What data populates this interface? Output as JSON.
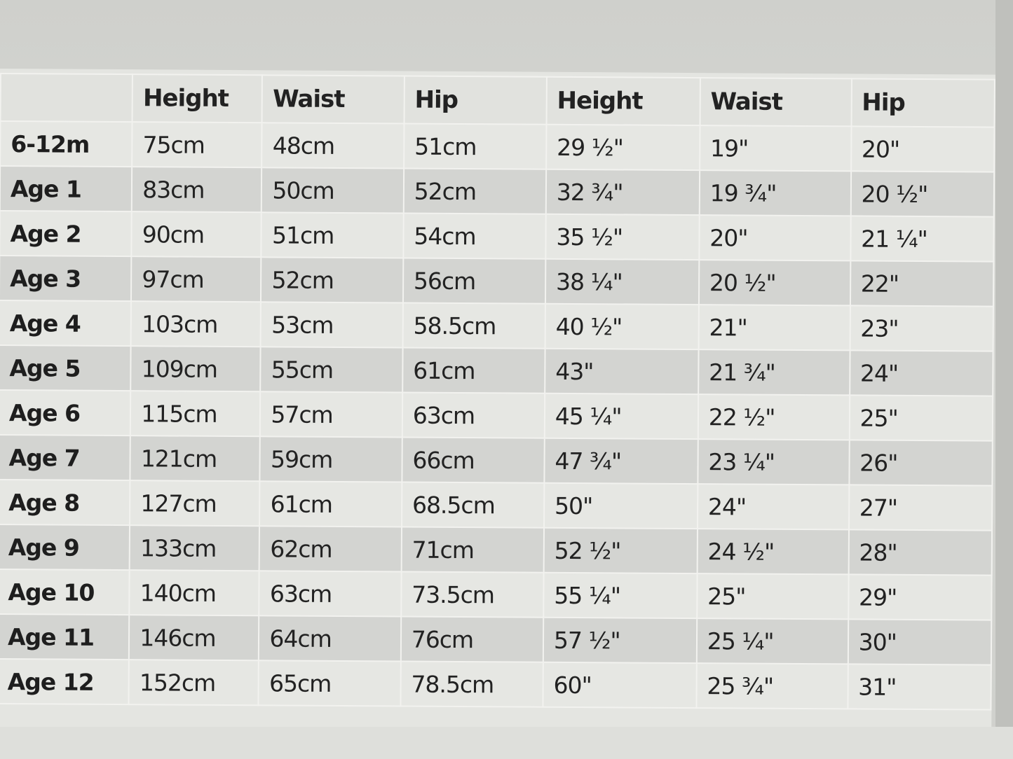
{
  "table": {
    "headers": [
      "",
      "Height",
      "Waist",
      "Hip",
      "Height",
      "Waist",
      "Hip"
    ],
    "rows": [
      [
        "6-12m",
        "75cm",
        "48cm",
        "51cm",
        "29 ½\"",
        "19\"",
        "20\""
      ],
      [
        "Age 1",
        "83cm",
        "50cm",
        "52cm",
        "32 ¾\"",
        "19 ¾\"",
        "20 ½\""
      ],
      [
        "Age 2",
        "90cm",
        "51cm",
        "54cm",
        "35 ½\"",
        "20\"",
        "21 ¼\""
      ],
      [
        "Age 3",
        "97cm",
        "52cm",
        "56cm",
        "38 ¼\"",
        "20 ½\"",
        "22\""
      ],
      [
        "Age 4",
        "103cm",
        "53cm",
        "58.5cm",
        "40 ½\"",
        "21\"",
        "23\""
      ],
      [
        "Age 5",
        "109cm",
        "55cm",
        "61cm",
        "43\"",
        "21 ¾\"",
        "24\""
      ],
      [
        "Age 6",
        "115cm",
        "57cm",
        "63cm",
        "45 ¼\"",
        "22 ½\"",
        "25\""
      ],
      [
        "Age 7",
        "121cm",
        "59cm",
        "66cm",
        "47 ¾\"",
        "23 ¼\"",
        "26\""
      ],
      [
        "Age 8",
        "127cm",
        "61cm",
        "68.5cm",
        "50\"",
        "24\"",
        "27\""
      ],
      [
        "Age 9",
        "133cm",
        "62cm",
        "71cm",
        "52 ½\"",
        "24 ½\"",
        "28\""
      ],
      [
        "Age 10",
        "140cm",
        "63cm",
        "73.5cm",
        "55 ¼\"",
        "25\"",
        "29\""
      ],
      [
        "Age 11",
        "146cm",
        "64cm",
        "76cm",
        "57 ½\"",
        "25 ¼\"",
        "30\""
      ],
      [
        "Age 12",
        "152cm",
        "65cm",
        "78.5cm",
        "60\"",
        "25 ¾\"",
        "31\""
      ]
    ]
  }
}
